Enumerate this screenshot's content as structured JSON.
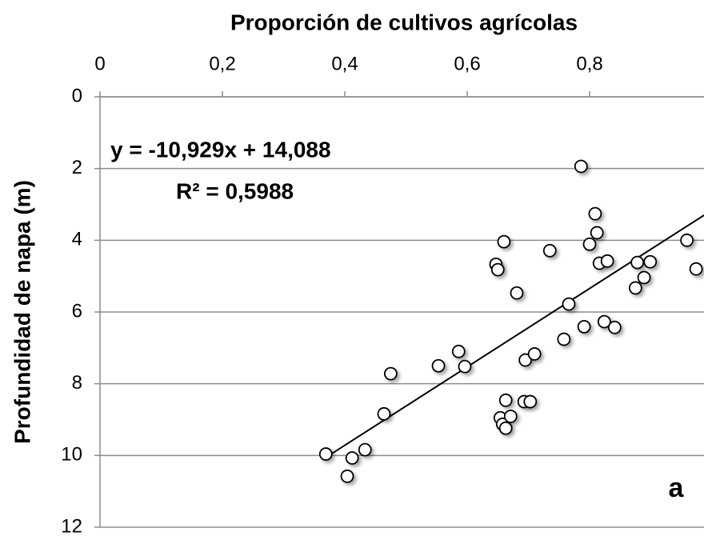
{
  "chart_data": {
    "type": "scatter",
    "title": "Proporción de cultivos agrícolas",
    "y_label": "Profundidad de napa (m)",
    "x_axis_position": "top",
    "y_inverted": true,
    "grid": true,
    "marker_color": "#ffffff",
    "marker_edge": "#000000",
    "xlim": [
      0,
      1
    ],
    "xticks": [
      0,
      {
        "value": 0.2,
        "label": "0,2"
      },
      {
        "value": 0.4,
        "label": "0,4"
      },
      {
        "value": 0.6,
        "label": "0,6"
      },
      {
        "value": 0.8,
        "label": "0,8"
      }
    ],
    "ylim": [
      0,
      12
    ],
    "yticks": [
      0,
      2,
      4,
      6,
      8,
      10,
      12
    ],
    "x": [
      0.369,
      0.404,
      0.412,
      0.433,
      0.464,
      0.475,
      0.553,
      0.586,
      0.596,
      0.647,
      0.65,
      0.66,
      0.663,
      0.654,
      0.658,
      0.663,
      0.671,
      0.693,
      0.703,
      0.681,
      0.695,
      0.71,
      0.735,
      0.758,
      0.766,
      0.786,
      0.791,
      0.8,
      0.809,
      0.812,
      0.816,
      0.824,
      0.829,
      0.841,
      0.875,
      0.878,
      0.889,
      0.899,
      0.959,
      0.974
    ],
    "values": [
      9.96,
      10.58,
      10.07,
      9.84,
      8.84,
      7.72,
      7.5,
      7.1,
      7.52,
      4.67,
      4.82,
      4.04,
      8.46,
      8.95,
      9.13,
      9.24,
      8.91,
      8.5,
      8.5,
      5.47,
      7.34,
      7.17,
      4.29,
      6.76,
      5.78,
      1.94,
      6.41,
      4.11,
      3.26,
      3.79,
      4.64,
      6.27,
      4.58,
      6.43,
      5.33,
      4.62,
      5.04,
      4.6,
      4.0,
      4.8
    ],
    "trendline": {
      "color": "#000000",
      "x": [
        0.369,
        0.99
      ],
      "y": [
        10.055,
        3.268
      ]
    },
    "equation": "y = -10,929x + 14,088",
    "r_squared": "R² = 0,5988",
    "panel_label": "a"
  }
}
